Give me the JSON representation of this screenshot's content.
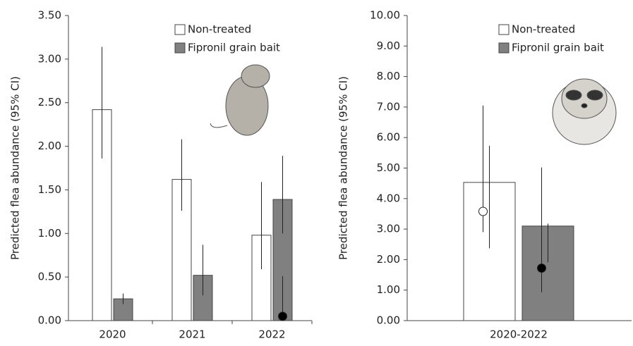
{
  "chart_data": [
    {
      "type": "bar",
      "ylabel": "Predicted flea abundance (95% CI)",
      "categories": [
        "2020",
        "2021",
        "2022"
      ],
      "series": [
        {
          "name": "Non-treated",
          "color": "#ffffff",
          "values": [
            2.42,
            1.62,
            0.98
          ],
          "lower": [
            1.86,
            1.26,
            0.59
          ],
          "upper": [
            3.14,
            2.08,
            1.59
          ]
        },
        {
          "name": "Fipronil grain bait",
          "color": "#808080",
          "values": [
            0.25,
            0.52,
            1.39
          ],
          "lower": [
            0.19,
            0.29,
            1.0
          ],
          "upper": [
            0.31,
            0.87,
            1.89
          ]
        }
      ],
      "points": [
        {
          "color": "#000000",
          "values": [
            null,
            null,
            0.05
          ],
          "lower": [
            null,
            null,
            0.0
          ],
          "upper": [
            null,
            null,
            0.51
          ]
        }
      ],
      "ylim": [
        0,
        3.5
      ],
      "yticks": [
        {
          "value": 0,
          "label": "0.00"
        },
        {
          "value": 0.5,
          "label": "0.50"
        },
        {
          "value": 1,
          "label": "1.00"
        },
        {
          "value": 1.5,
          "label": "1.50"
        },
        {
          "value": 2,
          "label": "2.00"
        },
        {
          "value": 2.5,
          "label": "2.50"
        },
        {
          "value": 3,
          "label": "3.00"
        },
        {
          "value": 3.5,
          "label": "3.50"
        }
      ]
    },
    {
      "type": "bar",
      "ylabel": "Predicted flea abundance (95% CI)",
      "categories": [
        "2020-2022"
      ],
      "series": [
        {
          "name": "Non-treated",
          "color": "#ffffff",
          "values": [
            4.53
          ],
          "lower": [
            2.37
          ],
          "upper": [
            5.73
          ]
        },
        {
          "name": "Fipronil grain bait",
          "color": "#808080",
          "values": [
            3.1
          ],
          "lower": [
            1.91
          ],
          "upper": [
            3.18
          ]
        }
      ],
      "points": [
        {
          "color": "#ffffff",
          "values": [
            3.58
          ],
          "lower": [
            2.9
          ],
          "upper": [
            7.05
          ]
        },
        {
          "color": "#000000",
          "values": [
            1.72
          ],
          "lower": [
            0.93
          ],
          "upper": [
            5.02
          ]
        }
      ],
      "ylim": [
        0,
        10
      ],
      "yticks": [
        {
          "value": 0,
          "label": "0.00"
        },
        {
          "value": 1,
          "label": "1.00"
        },
        {
          "value": 2,
          "label": "2.00"
        },
        {
          "value": 3,
          "label": "3.00"
        },
        {
          "value": 4,
          "label": "4.00"
        },
        {
          "value": 5,
          "label": "5.00"
        },
        {
          "value": 6,
          "label": "6.00"
        },
        {
          "value": 7,
          "label": "7.00"
        },
        {
          "value": 8,
          "label": "8.00"
        },
        {
          "value": 9,
          "label": "9.00"
        },
        {
          "value": 10,
          "label": "10.00"
        }
      ]
    }
  ]
}
